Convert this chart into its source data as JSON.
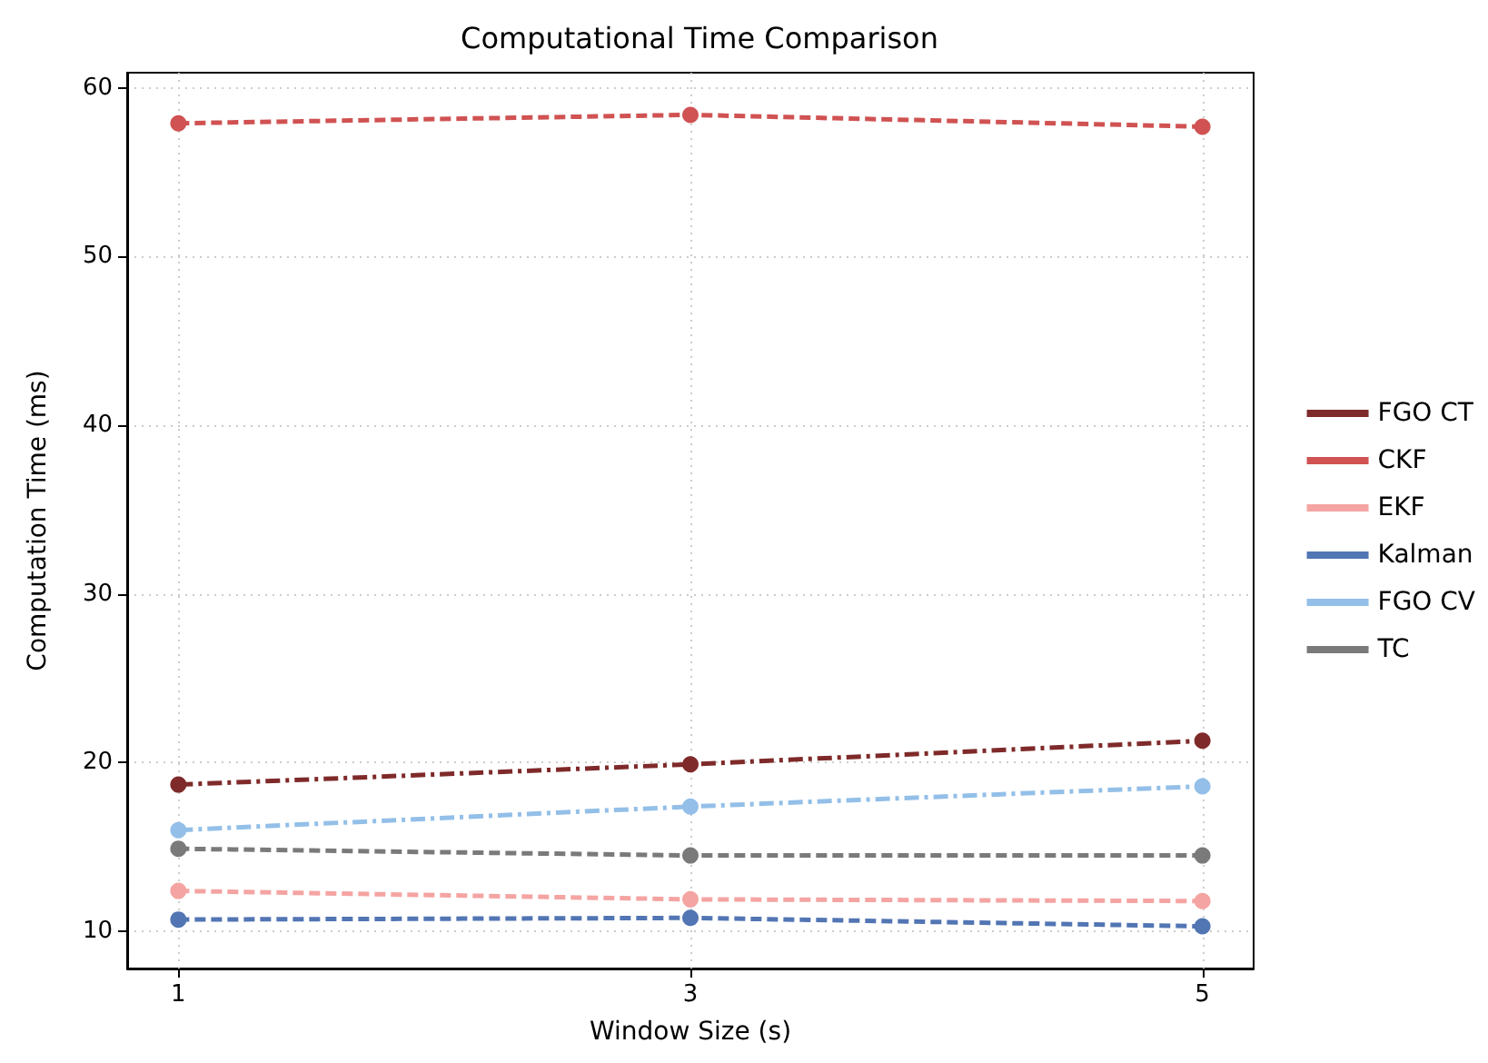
{
  "chart_data": {
    "type": "line",
    "title": "Computational Time Comparison",
    "xlabel": "Window Size (s)",
    "ylabel": "Computation Time (ms)",
    "x": [
      1,
      3,
      5
    ],
    "xlim": [
      0.8,
      5.2
    ],
    "xticks": [
      1,
      3,
      5
    ],
    "ylim": [
      7.8,
      60.9
    ],
    "yticks": [
      10,
      20,
      30,
      40,
      50,
      60
    ],
    "grid": true,
    "legend": "right",
    "marker": "circle",
    "series": [
      {
        "name": "FGO CT",
        "color": "#7f2a2a",
        "line_style": "dashdot",
        "values": [
          18.7,
          19.9,
          21.3
        ]
      },
      {
        "name": "CKF",
        "color": "#d05252",
        "line_style": "dashed",
        "values": [
          57.9,
          58.4,
          57.7
        ]
      },
      {
        "name": "EKF",
        "color": "#f4a4a2",
        "line_style": "dashed",
        "values": [
          12.4,
          11.9,
          11.8
        ]
      },
      {
        "name": "Kalman",
        "color": "#5275b3",
        "line_style": "dashed",
        "values": [
          10.7,
          10.8,
          10.3
        ]
      },
      {
        "name": "FGO CV",
        "color": "#93bfe8",
        "line_style": "dashdot",
        "values": [
          16.0,
          17.4,
          18.6
        ]
      },
      {
        "name": "TC",
        "color": "#7a7a7a",
        "line_style": "dashed",
        "values": [
          14.9,
          14.5,
          14.5
        ]
      }
    ]
  }
}
